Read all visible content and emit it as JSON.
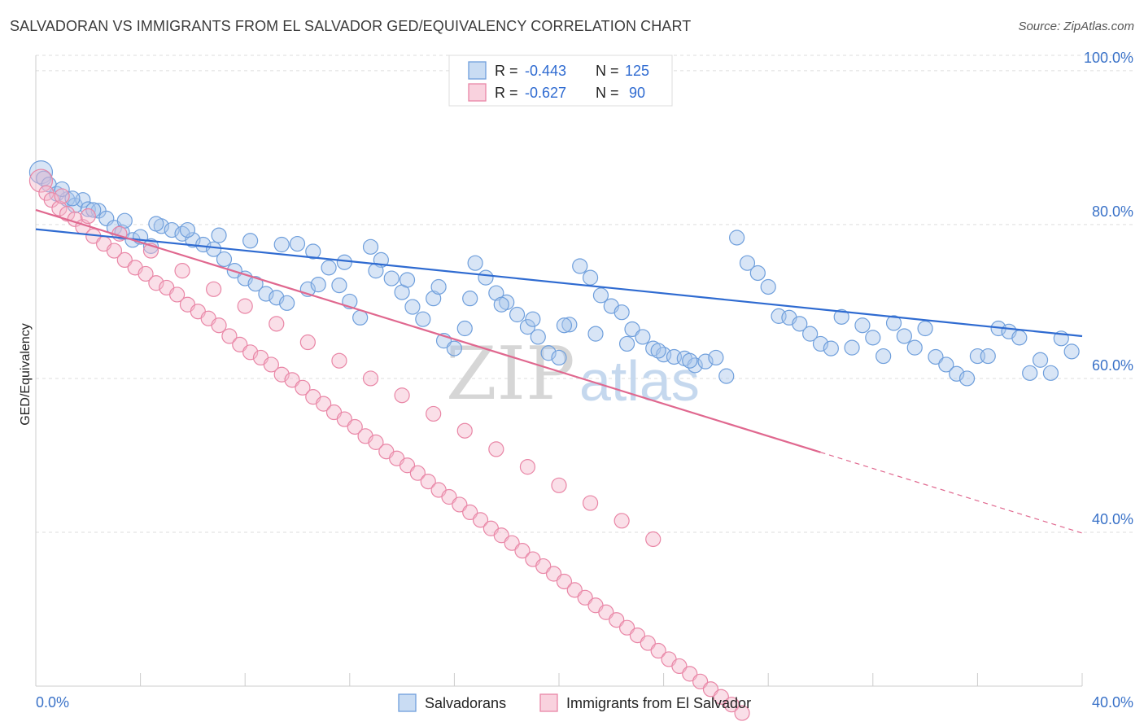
{
  "title": "SALVADORAN VS IMMIGRANTS FROM EL SALVADOR GED/EQUIVALENCY CORRELATION CHART",
  "source": "Source: ZipAtlas.com",
  "watermark": {
    "zip": "ZIP",
    "atlas": "atlas"
  },
  "legend": {
    "rows": [
      {
        "r_label": "R =",
        "r_value": "-0.443",
        "n_label": "N =",
        "n_value": "125"
      },
      {
        "r_label": "R =",
        "r_value": "-0.627",
        "n_label": "N =",
        "n_value": "90"
      }
    ]
  },
  "bottom_legend": [
    "Salvadorans",
    "Immigrants from El Salvador"
  ],
  "colors": {
    "blue_fill": "#a9c6ec",
    "blue_stroke": "#6f9fdc",
    "blue_line": "#2f6bd1",
    "pink_fill": "#f5b8cb",
    "pink_stroke": "#e986a6",
    "pink_line": "#e0688f",
    "grid": "#dddddd",
    "axis_label": "#3a72c8"
  },
  "chart_data": {
    "type": "scatter",
    "title": "SALVADORAN VS IMMIGRANTS FROM EL SALVADOR GED/EQUIVALENCY CORRELATION CHART",
    "xlabel": "",
    "ylabel": "GED/Equivalency",
    "xlim": [
      0,
      40
    ],
    "ylim": [
      20,
      102
    ],
    "x_tick_labels": [
      "0.0%",
      "40.0%"
    ],
    "y_ticks": [
      40,
      60,
      80,
      100
    ],
    "y_tick_labels": [
      "40.0%",
      "60.0%",
      "80.0%",
      "100.0%"
    ],
    "grid": true,
    "legend_position": "top-center",
    "series": [
      {
        "name": "Salvadorans",
        "color": "#6f9fdc",
        "trend": {
          "x": [
            0,
            40
          ],
          "y": [
            79.4,
            65.5
          ]
        },
        "points": [
          [
            0.2,
            86.8
          ],
          [
            0.3,
            86.0
          ],
          [
            0.5,
            85.2
          ],
          [
            0.8,
            84.0
          ],
          [
            1.2,
            83.3
          ],
          [
            1.5,
            82.5
          ],
          [
            1.8,
            83.2
          ],
          [
            2.0,
            82.0
          ],
          [
            2.4,
            81.8
          ],
          [
            2.7,
            80.8
          ],
          [
            3.0,
            79.6
          ],
          [
            3.3,
            79.0
          ],
          [
            3.7,
            78.0
          ],
          [
            4.0,
            78.4
          ],
          [
            4.4,
            77.2
          ],
          [
            4.8,
            79.8
          ],
          [
            5.2,
            79.3
          ],
          [
            5.6,
            78.8
          ],
          [
            6.0,
            78.0
          ],
          [
            6.4,
            77.4
          ],
          [
            6.8,
            76.8
          ],
          [
            7.2,
            75.5
          ],
          [
            7.6,
            74.0
          ],
          [
            8.0,
            73.0
          ],
          [
            8.4,
            72.3
          ],
          [
            8.8,
            71.0
          ],
          [
            9.2,
            70.5
          ],
          [
            9.6,
            69.8
          ],
          [
            10.0,
            77.5
          ],
          [
            10.4,
            71.6
          ],
          [
            10.8,
            72.2
          ],
          [
            11.2,
            74.4
          ],
          [
            11.6,
            72.1
          ],
          [
            12.0,
            70.0
          ],
          [
            12.4,
            67.9
          ],
          [
            12.8,
            77.1
          ],
          [
            13.2,
            75.4
          ],
          [
            13.6,
            73.0
          ],
          [
            14.0,
            71.2
          ],
          [
            14.4,
            69.3
          ],
          [
            14.8,
            67.7
          ],
          [
            15.2,
            70.4
          ],
          [
            15.6,
            64.9
          ],
          [
            16.0,
            63.9
          ],
          [
            16.4,
            66.5
          ],
          [
            16.8,
            75.0
          ],
          [
            17.2,
            73.1
          ],
          [
            17.6,
            71.1
          ],
          [
            18.0,
            69.9
          ],
          [
            18.4,
            68.3
          ],
          [
            18.8,
            66.7
          ],
          [
            19.2,
            65.4
          ],
          [
            19.6,
            63.3
          ],
          [
            20.0,
            62.7
          ],
          [
            20.4,
            67.0
          ],
          [
            20.8,
            74.6
          ],
          [
            21.2,
            73.1
          ],
          [
            21.6,
            70.8
          ],
          [
            22.0,
            69.4
          ],
          [
            22.4,
            68.6
          ],
          [
            22.8,
            66.4
          ],
          [
            23.2,
            65.4
          ],
          [
            23.6,
            63.9
          ],
          [
            24.0,
            63.1
          ],
          [
            24.4,
            62.8
          ],
          [
            24.8,
            62.6
          ],
          [
            25.2,
            61.7
          ],
          [
            25.6,
            62.2
          ],
          [
            26.0,
            62.7
          ],
          [
            26.4,
            60.3
          ],
          [
            26.8,
            78.3
          ],
          [
            27.2,
            75.0
          ],
          [
            27.6,
            73.7
          ],
          [
            28.0,
            71.9
          ],
          [
            28.4,
            68.1
          ],
          [
            28.8,
            67.9
          ],
          [
            29.2,
            67.1
          ],
          [
            29.6,
            65.8
          ],
          [
            30.0,
            64.5
          ],
          [
            30.4,
            63.9
          ],
          [
            30.8,
            68.0
          ],
          [
            31.2,
            64.0
          ],
          [
            31.6,
            66.9
          ],
          [
            32.0,
            65.3
          ],
          [
            32.4,
            62.9
          ],
          [
            32.8,
            67.2
          ],
          [
            33.2,
            65.5
          ],
          [
            33.6,
            64.0
          ],
          [
            34.0,
            66.5
          ],
          [
            34.4,
            62.8
          ],
          [
            34.8,
            61.8
          ],
          [
            35.2,
            60.6
          ],
          [
            35.6,
            60.0
          ],
          [
            36.0,
            62.9
          ],
          [
            36.4,
            62.9
          ],
          [
            36.8,
            66.5
          ],
          [
            37.2,
            66.1
          ],
          [
            37.6,
            65.3
          ],
          [
            38.0,
            60.7
          ],
          [
            38.4,
            62.4
          ],
          [
            38.8,
            60.7
          ],
          [
            39.2,
            65.2
          ],
          [
            39.6,
            63.5
          ],
          [
            1.0,
            84.6
          ],
          [
            1.4,
            83.4
          ],
          [
            2.2,
            81.9
          ],
          [
            3.4,
            80.5
          ],
          [
            4.6,
            80.1
          ],
          [
            5.8,
            79.3
          ],
          [
            7.0,
            78.6
          ],
          [
            8.2,
            77.9
          ],
          [
            9.4,
            77.4
          ],
          [
            10.6,
            76.5
          ],
          [
            11.8,
            75.1
          ],
          [
            13.0,
            74.0
          ],
          [
            14.2,
            72.8
          ],
          [
            15.4,
            71.9
          ],
          [
            16.6,
            70.4
          ],
          [
            17.8,
            69.6
          ],
          [
            19.0,
            67.7
          ],
          [
            20.2,
            66.9
          ],
          [
            21.4,
            65.8
          ],
          [
            22.6,
            64.5
          ],
          [
            23.8,
            63.6
          ],
          [
            25.0,
            62.3
          ]
        ]
      },
      {
        "name": "Immigrants from El Salvador",
        "color": "#e986a6",
        "trend": {
          "x": [
            0,
            30
          ],
          "y": [
            81.9,
            50.4
          ]
        },
        "trend_dashed": {
          "x": [
            30,
            40
          ],
          "y": [
            50.4,
            39.9
          ]
        },
        "points": [
          [
            0.2,
            85.7
          ],
          [
            0.4,
            84.1
          ],
          [
            0.6,
            83.2
          ],
          [
            0.9,
            82.1
          ],
          [
            1.2,
            81.4
          ],
          [
            1.5,
            80.7
          ],
          [
            1.8,
            79.7
          ],
          [
            2.2,
            78.5
          ],
          [
            2.6,
            77.5
          ],
          [
            3.0,
            76.6
          ],
          [
            3.4,
            75.4
          ],
          [
            3.8,
            74.4
          ],
          [
            4.2,
            73.6
          ],
          [
            4.6,
            72.4
          ],
          [
            5.0,
            71.8
          ],
          [
            5.4,
            70.9
          ],
          [
            5.8,
            69.6
          ],
          [
            6.2,
            68.7
          ],
          [
            6.6,
            67.8
          ],
          [
            7.0,
            66.9
          ],
          [
            7.4,
            65.5
          ],
          [
            7.8,
            64.4
          ],
          [
            8.2,
            63.4
          ],
          [
            8.6,
            62.7
          ],
          [
            9.0,
            61.8
          ],
          [
            9.4,
            60.5
          ],
          [
            9.8,
            59.8
          ],
          [
            10.2,
            58.8
          ],
          [
            10.6,
            57.6
          ],
          [
            11.0,
            56.7
          ],
          [
            11.4,
            55.6
          ],
          [
            11.8,
            54.7
          ],
          [
            12.2,
            53.7
          ],
          [
            12.6,
            52.5
          ],
          [
            13.0,
            51.7
          ],
          [
            13.4,
            50.5
          ],
          [
            13.8,
            49.6
          ],
          [
            14.2,
            48.7
          ],
          [
            14.6,
            47.7
          ],
          [
            15.0,
            46.6
          ],
          [
            15.4,
            45.5
          ],
          [
            15.8,
            44.6
          ],
          [
            16.2,
            43.6
          ],
          [
            16.6,
            42.6
          ],
          [
            17.0,
            41.6
          ],
          [
            17.4,
            40.5
          ],
          [
            17.8,
            39.6
          ],
          [
            18.2,
            38.6
          ],
          [
            18.6,
            37.6
          ],
          [
            19.0,
            36.5
          ],
          [
            19.4,
            35.6
          ],
          [
            19.8,
            34.6
          ],
          [
            20.2,
            33.6
          ],
          [
            20.6,
            32.5
          ],
          [
            21.0,
            31.5
          ],
          [
            21.4,
            30.5
          ],
          [
            21.8,
            29.6
          ],
          [
            22.2,
            28.6
          ],
          [
            22.6,
            27.6
          ],
          [
            23.0,
            26.6
          ],
          [
            23.4,
            25.6
          ],
          [
            23.8,
            24.6
          ],
          [
            24.2,
            23.5
          ],
          [
            24.6,
            22.6
          ],
          [
            25.0,
            21.6
          ],
          [
            25.4,
            20.6
          ],
          [
            25.8,
            19.6
          ],
          [
            26.2,
            18.6
          ],
          [
            26.6,
            17.6
          ],
          [
            27.0,
            16.5
          ],
          [
            1.0,
            83.7
          ],
          [
            2.0,
            81.1
          ],
          [
            3.2,
            78.8
          ],
          [
            4.4,
            76.6
          ],
          [
            5.6,
            74.0
          ],
          [
            6.8,
            71.6
          ],
          [
            8.0,
            69.4
          ],
          [
            9.2,
            67.1
          ],
          [
            10.4,
            64.7
          ],
          [
            11.6,
            62.3
          ],
          [
            12.8,
            60.0
          ],
          [
            14.0,
            57.8
          ],
          [
            15.2,
            55.4
          ],
          [
            16.4,
            53.2
          ],
          [
            17.6,
            50.8
          ],
          [
            18.8,
            48.5
          ],
          [
            20.0,
            46.1
          ],
          [
            21.2,
            43.8
          ],
          [
            22.4,
            41.5
          ],
          [
            23.6,
            39.1
          ]
        ]
      }
    ]
  }
}
